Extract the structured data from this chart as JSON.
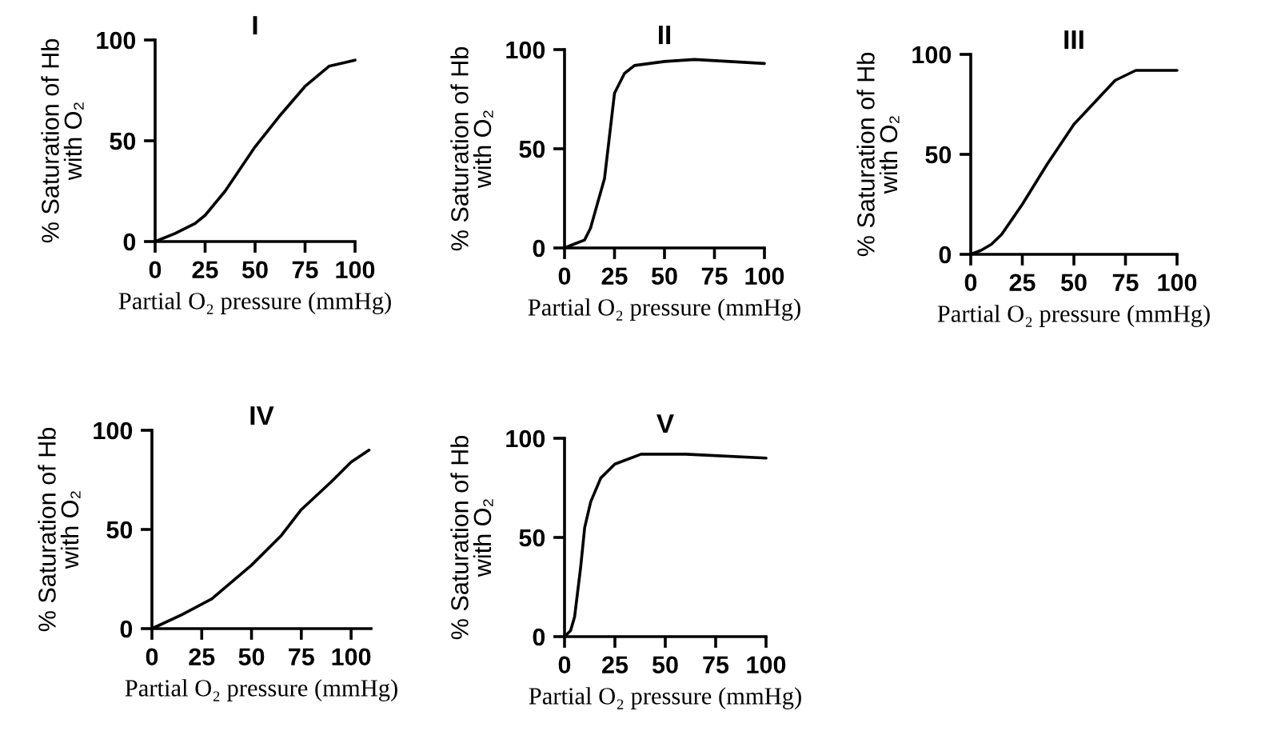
{
  "chart_data": [
    {
      "type": "line",
      "title": "I",
      "xlabel": "Partial O₂ pressure (mmHg)",
      "ylabel": "% Saturation of Hb\nwith O₂",
      "x": [
        0,
        10,
        20,
        25,
        35,
        50,
        62,
        75,
        87,
        100
      ],
      "values": [
        0,
        4,
        9,
        13,
        25,
        47,
        62,
        77,
        87,
        90
      ],
      "color": "#000000",
      "xlim": [
        0,
        100
      ],
      "ylim": [
        0,
        100
      ],
      "xticks": [
        0,
        25,
        50,
        75,
        100
      ],
      "yticks": [
        0,
        50,
        100
      ]
    },
    {
      "type": "line",
      "title": "II",
      "xlabel": "Partial O₂ pressure (mmHg)",
      "ylabel": "% Saturation of Hb\nwith O₂",
      "x": [
        0,
        5,
        10,
        13,
        20,
        25,
        30,
        35,
        50,
        65,
        100
      ],
      "values": [
        0,
        2,
        4,
        10,
        35,
        78,
        88,
        92,
        94,
        95,
        93
      ],
      "color": "#000000",
      "xlim": [
        0,
        100
      ],
      "ylim": [
        0,
        100
      ],
      "xticks": [
        0,
        25,
        50,
        75,
        100
      ],
      "yticks": [
        0,
        50,
        100
      ]
    },
    {
      "type": "line",
      "title": "III",
      "xlabel": "Partial O₂ pressure (mmHg)",
      "ylabel": "% Saturation of Hb\nwith O₂",
      "x": [
        0,
        5,
        10,
        15,
        25,
        37,
        50,
        60,
        70,
        80,
        100
      ],
      "values": [
        0,
        2,
        5,
        10,
        25,
        45,
        65,
        76,
        87,
        92,
        92
      ],
      "color": "#000000",
      "xlim": [
        0,
        100
      ],
      "ylim": [
        0,
        100
      ],
      "xticks": [
        0,
        25,
        50,
        75,
        100
      ],
      "yticks": [
        0,
        50,
        100
      ]
    },
    {
      "type": "line",
      "title": "IV",
      "xlabel": "Partial O₂ pressure (mmHg)",
      "ylabel": "% Saturation of Hb\nwith O₂",
      "x": [
        0,
        15,
        30,
        50,
        65,
        75,
        90,
        100,
        109
      ],
      "values": [
        0,
        7,
        15,
        32,
        47,
        60,
        74,
        84,
        90
      ],
      "color": "#000000",
      "xlim": [
        0,
        110
      ],
      "ylim": [
        0,
        100
      ],
      "xticks": [
        0,
        25,
        50,
        75,
        100
      ],
      "yticks": [
        0,
        50,
        100
      ]
    },
    {
      "type": "line",
      "title": "V",
      "xlabel": "Partial O₂ pressure (mmHg)",
      "ylabel": "% Saturation of Hb\nwith O₂",
      "x": [
        0,
        3,
        5,
        8,
        10,
        13,
        18,
        25,
        38,
        60,
        100
      ],
      "values": [
        0,
        3,
        10,
        35,
        55,
        68,
        80,
        87,
        92,
        92,
        90
      ],
      "color": "#000000",
      "xlim": [
        0,
        100
      ],
      "ylim": [
        0,
        100
      ],
      "xticks": [
        0,
        25,
        50,
        75,
        100
      ],
      "yticks": [
        0,
        50,
        100
      ]
    }
  ]
}
